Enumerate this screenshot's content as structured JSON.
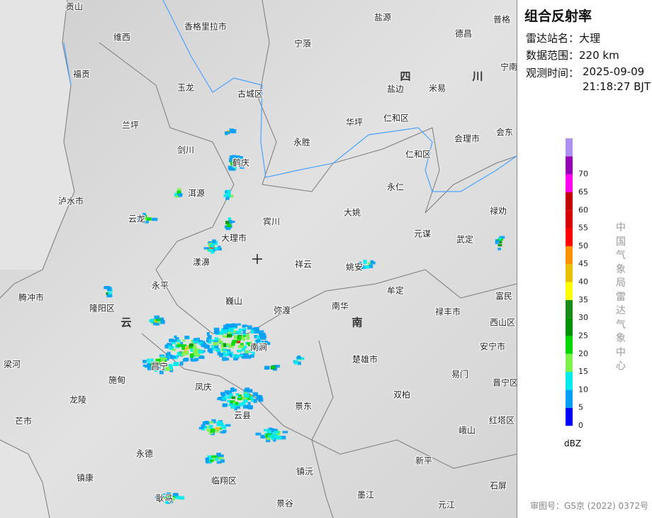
{
  "panel": {
    "title": "组合反射率",
    "station_label": "雷达站名：",
    "station": "大理",
    "range_label": "数据范围：",
    "range": "220 km",
    "time_label": "观测时间：",
    "time_date": "2025-09-09",
    "time_clock": "21:18:27 BJT",
    "source": "中国气象局雷达气象中心",
    "unit": "dBZ",
    "approval": "审图号：GS京 (2022) 0372号"
  },
  "legend": {
    "values": [
      0,
      5,
      10,
      15,
      20,
      25,
      30,
      35,
      40,
      45,
      50,
      55,
      60,
      65,
      70
    ],
    "colors": [
      "#0000f6",
      "#01a0f6",
      "#00ecec",
      "#7ef24a",
      "#00d800",
      "#019000",
      "#1a8a1a",
      "#ffff00",
      "#e7c000",
      "#ff9000",
      "#ff0000",
      "#d60000",
      "#c00000",
      "#ff00f0",
      "#9600b4",
      "#ad90f0"
    ]
  },
  "map": {
    "labels": [
      "贡山",
      "香格里拉市",
      "盐源",
      "普格",
      "维西",
      "宁蒗",
      "德昌",
      "福贡",
      "玉龙",
      "古城区",
      "盐边",
      "米易",
      "宁南",
      "仁和区",
      "华坪",
      "兰坪",
      "会理市",
      "会东",
      "剑川",
      "永胜",
      "仁和区",
      "鹤庆",
      "永仁",
      "泸水市",
      "洱源",
      "大姚",
      "禄劝",
      "云龙",
      "宾川",
      "元谋",
      "武定",
      "大理市",
      "祥云",
      "姚安",
      "漾濞",
      "永平",
      "牟定",
      "富民",
      "腾冲市",
      "隆阳区",
      "巍山",
      "弥渡",
      "南华",
      "禄丰市",
      "西山区",
      "南涧",
      "安宁市",
      "楚雄市",
      "梁河",
      "昌宁",
      "易门",
      "晋宁区",
      "施甸",
      "凤庆",
      "双柏",
      "龙陵",
      "景东",
      "云县",
      "红塔区",
      "芒市",
      "峨山",
      "永德",
      "新平",
      "镇康",
      "临翔区",
      "镇沅",
      "石屏",
      "墨江",
      "耿马",
      "景谷",
      "元江"
    ],
    "region_labels": [
      "四",
      "川",
      "云",
      "南"
    ]
  }
}
